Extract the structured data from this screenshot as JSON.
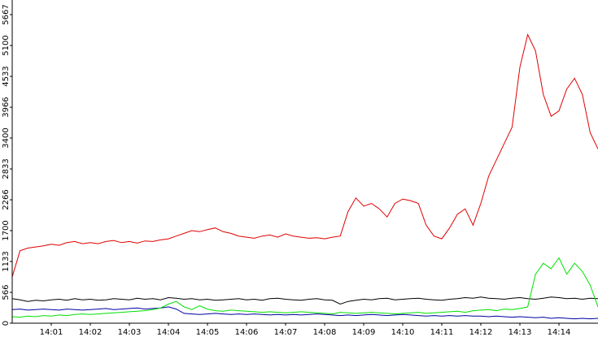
{
  "chart_data": {
    "type": "line",
    "categories": [
      null,
      null,
      null,
      null,
      null,
      "14:01",
      null,
      null,
      null,
      null,
      "14:02",
      null,
      null,
      null,
      null,
      "14:03",
      null,
      null,
      null,
      null,
      "14:04",
      null,
      null,
      null,
      null,
      "14:05",
      null,
      null,
      null,
      null,
      "14:06",
      null,
      null,
      null,
      null,
      "14:07",
      null,
      null,
      null,
      null,
      "14:08",
      null,
      null,
      null,
      null,
      "14:09",
      null,
      null,
      null,
      null,
      "14:10",
      null,
      null,
      null,
      null,
      "14:11",
      null,
      null,
      null,
      null,
      "14:12",
      null,
      null,
      null,
      null,
      "14:13",
      null,
      null,
      null,
      null,
      "14:14",
      null,
      null,
      null,
      null,
      null
    ],
    "series": [
      {
        "color": "#000000",
        "values": [
          450,
          430,
          400,
          420,
          410,
          430,
          440,
          420,
          450,
          430,
          440,
          420,
          430,
          450,
          440,
          430,
          460,
          440,
          450,
          430,
          470,
          460,
          440,
          450,
          430,
          440,
          420,
          430,
          440,
          450,
          430,
          440,
          420,
          450,
          460,
          440,
          430,
          420,
          440,
          450,
          430,
          420,
          350,
          400,
          420,
          440,
          430,
          450,
          460,
          430,
          440,
          450,
          460,
          440,
          430,
          420,
          440,
          450,
          470,
          460,
          480,
          460,
          450,
          440,
          460,
          470,
          450,
          440,
          460,
          480,
          470,
          450,
          460,
          440,
          460,
          450
        ]
      },
      {
        "color": "#0000a0",
        "values": [
          250,
          260,
          240,
          250,
          260,
          250,
          240,
          260,
          250,
          240,
          250,
          260,
          270,
          250,
          260,
          270,
          280,
          260,
          270,
          280,
          300,
          260,
          180,
          170,
          160,
          170,
          180,
          170,
          160,
          170,
          160,
          170,
          160,
          150,
          160,
          150,
          160,
          150,
          160,
          170,
          160,
          150,
          140,
          150,
          140,
          150,
          160,
          150,
          140,
          150,
          160,
          150,
          140,
          130,
          140,
          130,
          140,
          130,
          140,
          130,
          130,
          120,
          130,
          120,
          110,
          120,
          110,
          100,
          110,
          90,
          100,
          90,
          80,
          90,
          80,
          90
        ]
      },
      {
        "color": "#00e000",
        "values": [
          120,
          110,
          130,
          120,
          140,
          130,
          150,
          140,
          160,
          170,
          160,
          170,
          180,
          190,
          200,
          210,
          220,
          230,
          250,
          280,
          350,
          400,
          300,
          250,
          320,
          260,
          230,
          220,
          240,
          230,
          220,
          210,
          200,
          210,
          200,
          190,
          200,
          210,
          200,
          190,
          180,
          170,
          200,
          190,
          180,
          190,
          200,
          190,
          180,
          170,
          180,
          190,
          200,
          180,
          190,
          200,
          210,
          220,
          200,
          230,
          240,
          250,
          230,
          260,
          250,
          270,
          300,
          900,
          1100,
          1000,
          1200,
          900,
          1100,
          950,
          700,
          300
        ]
      },
      {
        "color": "#e00000",
        "values": [
          850,
          1330,
          1380,
          1400,
          1420,
          1450,
          1430,
          1480,
          1500,
          1460,
          1480,
          1460,
          1500,
          1520,
          1480,
          1500,
          1470,
          1510,
          1500,
          1530,
          1550,
          1600,
          1650,
          1700,
          1680,
          1720,
          1750,
          1680,
          1650,
          1600,
          1580,
          1560,
          1600,
          1620,
          1580,
          1640,
          1600,
          1580,
          1560,
          1570,
          1550,
          1580,
          1600,
          2050,
          2300,
          2150,
          2200,
          2100,
          1950,
          2200,
          2280,
          2250,
          2200,
          1800,
          1600,
          1550,
          1750,
          2000,
          2100,
          1800,
          2200,
          2700,
          3000,
          3300,
          3600,
          4700,
          5300,
          5000,
          4200,
          3800,
          3900,
          4300,
          4500,
          4200,
          3500,
          3200
        ]
      }
    ],
    "ylim": [
      0,
      5667
    ],
    "yticks": [
      0,
      566,
      1133,
      1700,
      2266,
      2833,
      3400,
      3966,
      4533,
      5100,
      5667
    ]
  }
}
